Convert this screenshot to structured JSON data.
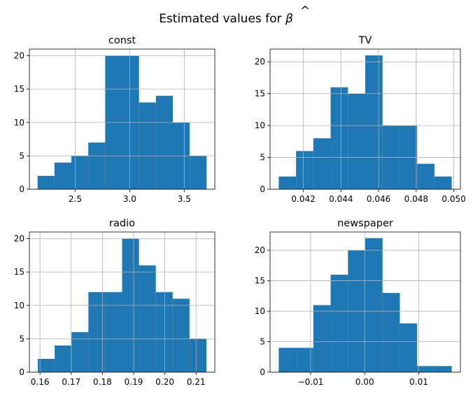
{
  "figure": {
    "title_text": "Estimated values for ",
    "title_symbol": "β",
    "title_hat": "^"
  },
  "colors": {
    "bar": "#1f77b4",
    "grid": "#b0b0b0",
    "axis": "#000000"
  },
  "chart_data": [
    {
      "type": "bar",
      "histogram": true,
      "title": "const",
      "grid": true,
      "bin_edges": [
        2.155,
        2.31,
        2.465,
        2.62,
        2.775,
        2.93,
        3.085,
        3.24,
        3.395,
        3.55,
        3.705
      ],
      "counts": [
        2,
        4,
        5,
        7,
        20,
        20,
        13,
        14,
        10,
        5
      ],
      "xlim": [
        2.08,
        3.78
      ],
      "ylim": [
        0,
        21
      ],
      "xticks": [
        2.5,
        3.0,
        3.5
      ],
      "xtick_labels": [
        "2.5",
        "3.0",
        "3.5"
      ],
      "yticks": [
        0,
        5,
        10,
        15,
        20
      ],
      "ytick_labels": [
        "0",
        "5",
        "10",
        "15",
        "20"
      ]
    },
    {
      "type": "bar",
      "histogram": true,
      "title": "TV",
      "grid": true,
      "bin_edges": [
        0.04069,
        0.04161,
        0.04253,
        0.04345,
        0.04437,
        0.04529,
        0.04621,
        0.04713,
        0.04805,
        0.04897,
        0.04989
      ],
      "counts": [
        2,
        6,
        8,
        16,
        15,
        21,
        10,
        10,
        4,
        2
      ],
      "xlim": [
        0.04023,
        0.05035
      ],
      "ylim": [
        0,
        22
      ],
      "xticks": [
        0.042,
        0.044,
        0.046,
        0.048,
        0.05
      ],
      "xtick_labels": [
        "0.042",
        "0.044",
        "0.046",
        "0.048",
        "0.050"
      ],
      "yticks": [
        0,
        5,
        10,
        15,
        20
      ],
      "ytick_labels": [
        "0",
        "5",
        "10",
        "15",
        "20"
      ]
    },
    {
      "type": "bar",
      "histogram": true,
      "title": "radio",
      "grid": true,
      "bin_edges": [
        0.1593,
        0.1647,
        0.1701,
        0.1755,
        0.1809,
        0.1863,
        0.1917,
        0.1971,
        0.2025,
        0.2079,
        0.2133
      ],
      "counts": [
        2,
        4,
        6,
        12,
        12,
        20,
        16,
        12,
        11,
        5
      ],
      "xlim": [
        0.1566,
        0.216
      ],
      "ylim": [
        0,
        21
      ],
      "xticks": [
        0.16,
        0.17,
        0.18,
        0.19,
        0.2,
        0.21
      ],
      "xtick_labels": [
        "0.16",
        "0.17",
        "0.18",
        "0.19",
        "0.20",
        "0.21"
      ],
      "yticks": [
        0,
        5,
        10,
        15,
        20
      ],
      "ytick_labels": [
        "0",
        "5",
        "10",
        "15",
        "20"
      ]
    },
    {
      "type": "bar",
      "histogram": true,
      "title": "newspaper",
      "grid": true,
      "bin_edges": [
        -0.0159,
        -0.0127,
        -0.0095,
        -0.0063,
        -0.0031,
        0.0001,
        0.0033,
        0.0065,
        0.0097,
        0.0129,
        0.0161
      ],
      "counts": [
        4,
        4,
        11,
        16,
        20,
        22,
        13,
        8,
        1,
        1
      ],
      "xlim": [
        -0.0175,
        0.0177
      ],
      "ylim": [
        0,
        23
      ],
      "xticks": [
        -0.01,
        0.0,
        0.01
      ],
      "xtick_labels": [
        "−0.01",
        "0.00",
        "0.01"
      ],
      "yticks": [
        0,
        5,
        10,
        15,
        20
      ],
      "ytick_labels": [
        "0",
        "5",
        "10",
        "15",
        "20"
      ]
    }
  ]
}
